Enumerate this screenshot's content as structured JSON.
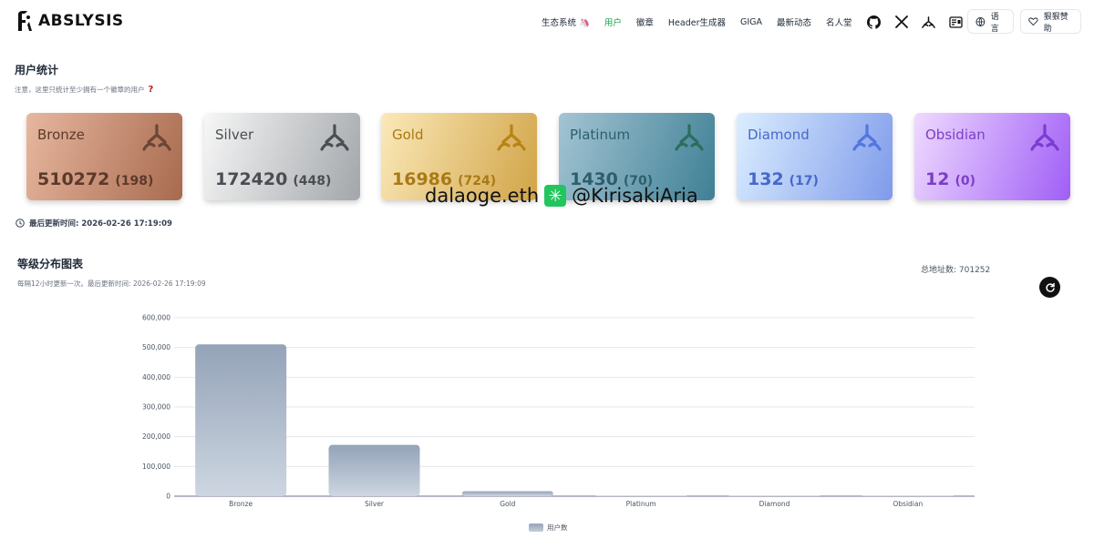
{
  "header": {
    "logo_text": "ABSLYSIS",
    "nav": [
      {
        "label": "生态系统 🦄",
        "active": false
      },
      {
        "label": "用户",
        "active": true
      },
      {
        "label": "徽章",
        "active": false
      },
      {
        "label": "Header生成器",
        "active": false
      },
      {
        "label": "GIGA",
        "active": false
      },
      {
        "label": "最新动态",
        "active": false
      },
      {
        "label": "名人堂",
        "active": false
      }
    ],
    "icons": [
      "github-icon",
      "x-icon",
      "abstract-icon",
      "card-icon"
    ],
    "lang_label": "语言",
    "donate_label": "狠狠赞助"
  },
  "stats": {
    "title": "用户统计",
    "note": "注意，这里只统计至少拥有一个徽章的用户",
    "cards": [
      {
        "name": "Bronze",
        "value": "510272",
        "count": "(198)",
        "g1": "#e7b79f",
        "g2": "#a86a4e",
        "text": "#5b3a2b",
        "icon": "#6b4636"
      },
      {
        "name": "Silver",
        "value": "172420",
        "count": "(448)",
        "g1": "#f7f7f7",
        "g2": "#a2a6aa",
        "text": "#4a4d52",
        "icon": "#4b4f55"
      },
      {
        "name": "Gold",
        "value": "16986",
        "count": "(724)",
        "g1": "#fbe9b9",
        "g2": "#d1a447",
        "text": "#a87a16",
        "icon": "#b78415"
      },
      {
        "name": "Platinum",
        "value": "1430",
        "count": "(70)",
        "g1": "#a3c4d3",
        "g2": "#3f8095",
        "text": "#2d5e6d",
        "icon": "#2c6e5e"
      },
      {
        "name": "Diamond",
        "value": "132",
        "count": "(17)",
        "g1": "#dbeeff",
        "g2": "#7f9bea",
        "text": "#4668c8",
        "icon": "#5276e0"
      },
      {
        "name": "Obsidian",
        "value": "12",
        "count": "(0)",
        "g1": "#efdaff",
        "g2": "#a05ef6",
        "text": "#7b3fc4",
        "icon": "#7d3bd1"
      }
    ],
    "updated": "最后更新时间: 2026-02-26 17:19:09"
  },
  "watermark": {
    "left": "dalaoge.eth",
    "right": "@KirisakiAria"
  },
  "distribution": {
    "title": "等级分布图表",
    "note": "每隔12小时更新一次。最后更新时间: 2026-02-26 17:19:09",
    "total": "总地址数: 701252"
  },
  "chart_data": {
    "type": "bar",
    "categories": [
      "Bronze",
      "Silver",
      "Gold",
      "Platinum",
      "Diamond",
      "Obsidian"
    ],
    "series": [
      {
        "name": "用户数",
        "values": [
          510272,
          172420,
          16986,
          1430,
          132,
          12
        ]
      }
    ],
    "ylim": [
      0,
      600000
    ],
    "yticks": [
      0,
      100000,
      200000,
      300000,
      400000,
      500000,
      600000
    ],
    "ytick_labels": [
      "0",
      "100,000",
      "200,000",
      "300,000",
      "400,000",
      "500,000",
      "600,000"
    ],
    "grid": true,
    "legend": "bottom-center",
    "bar_color_top": "#94a3b8",
    "bar_color_bottom": "#cdd6e1"
  }
}
